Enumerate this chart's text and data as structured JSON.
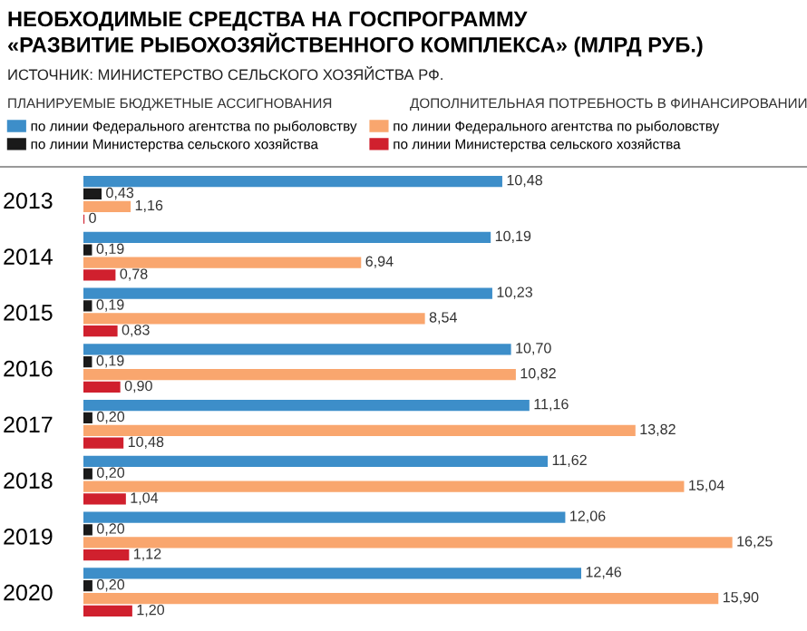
{
  "chart_data": {
    "type": "bar",
    "orientation": "horizontal",
    "title": "НЕОБХОДИМЫЕ СРЕДСТВА НА ГОСПРОГРАММУ\n«РАЗВИТИЕ РЫБОХОЗЯЙСТВЕННОГО КОМПЛЕКСА» (МЛРД РУБ.)",
    "subtitle": "ИСТОЧНИК: МИНИСТЕРСТВО СЕЛЬСКОГО ХОЗЯЙСТВА РФ.",
    "annotations": [
      "ПЛАНИРУЕМЫЕ БЮДЖЕТНЫЕ АССИГНОВАНИЯ",
      "ДОПОЛНИТЕЛЬНАЯ ПОТРЕБНОСТЬ В ФИНАНСИРОВАНИИ",
      {
        "text": "10,48",
        "x": 0.98,
        "y": "2017"
      }
    ],
    "categories": [
      "2013",
      "2014",
      "2015",
      "2016",
      "2017",
      "2018",
      "2019",
      "2020"
    ],
    "legend": "top",
    "series": [
      {
        "name": "по линии Федерального агентства по рыболовству",
        "color": "#3d8ec9",
        "values": [
          10.48,
          10.19,
          10.23,
          10.7,
          11.16,
          11.62,
          12.06,
          12.46
        ],
        "value_labels": [
          "10,48",
          "10,19",
          "10,23",
          "10,70",
          "11,16",
          "11,62",
          "12,06",
          "12,46"
        ]
      },
      {
        "name": "по линии Министерства сельского хозяйства",
        "color": "#1a1a1a",
        "values": [
          0.43,
          0.19,
          0.19,
          0.19,
          0.2,
          0.2,
          0.2,
          0.2
        ],
        "value_labels": [
          "0,43",
          "0,19",
          "0,19",
          "0,19",
          "0,20",
          "0,20",
          "0,20",
          "0,20"
        ]
      },
      {
        "name": "по линии Федерального агентства по рыболовству",
        "color": "#f9a66e",
        "values": [
          1.16,
          6.94,
          8.54,
          10.82,
          13.82,
          15.04,
          16.25,
          15.9
        ],
        "value_labels": [
          "1,16",
          "6,94",
          "8,54",
          "10,82",
          "13,82",
          "15,04",
          "16,25",
          "15,90"
        ]
      },
      {
        "name": "по линии Министерства сельского хозяйства",
        "color": "#d0202e",
        "values": [
          0,
          0.78,
          0.83,
          0.9,
          0.98,
          1.04,
          1.12,
          1.2
        ],
        "value_labels": [
          "0",
          "0,78",
          "0,83",
          "0,90",
          null,
          "1,04",
          "1,12",
          "1,20"
        ]
      }
    ]
  }
}
